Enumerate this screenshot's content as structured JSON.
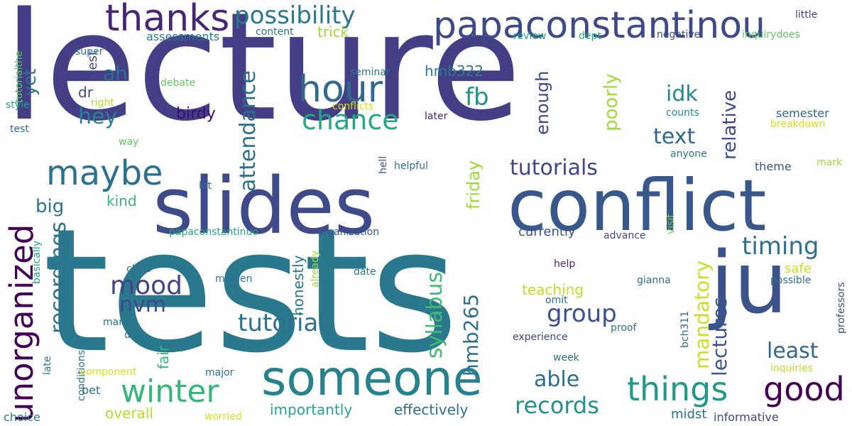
{
  "words": [
    {
      "text": "lecture",
      "color": "#433e85"
    },
    {
      "text": "tests",
      "color": "#2a788e"
    },
    {
      "text": "slides",
      "color": "#3e4a89"
    },
    {
      "text": "conflict",
      "color": "#38588c"
    },
    {
      "text": "someone",
      "color": "#26828e"
    },
    {
      "text": "ju",
      "color": "#3b528b"
    },
    {
      "text": "papaconstantinou",
      "color": "#3e4989"
    },
    {
      "text": "thanks",
      "color": "#482677"
    },
    {
      "text": "possibility",
      "color": "#2a788e"
    },
    {
      "text": "hour",
      "color": "#31688e"
    },
    {
      "text": "unorganized",
      "color": "#440154"
    },
    {
      "text": "maybe",
      "color": "#2c728e"
    },
    {
      "text": "winter",
      "color": "#35b779"
    },
    {
      "text": "things",
      "color": "#1f9a8a"
    },
    {
      "text": "good",
      "color": "#440154"
    },
    {
      "text": "chance",
      "color": "#22a884"
    },
    {
      "text": "attendance",
      "color": "#2d708e"
    },
    {
      "text": "tutorials",
      "color": "#3f4788"
    },
    {
      "text": "tutorial",
      "color": "#2c728e"
    },
    {
      "text": "group",
      "color": "#3b528b"
    },
    {
      "text": "timing",
      "color": "#2d708e"
    },
    {
      "text": "records",
      "color": "#21918c"
    },
    {
      "text": "mood",
      "color": "#414487"
    },
    {
      "text": "nvm",
      "color": "#3e4989"
    },
    {
      "text": "yet",
      "color": "#2c728e"
    },
    {
      "text": "hey",
      "color": "#26828e"
    },
    {
      "text": "ah",
      "color": "#2c728e"
    },
    {
      "text": "fb",
      "color": "#21918c"
    },
    {
      "text": "idk",
      "color": "#23888e"
    },
    {
      "text": "text",
      "color": "#31688e"
    },
    {
      "text": "enough",
      "color": "#3f4788"
    },
    {
      "text": "poorly",
      "color": "#a0da39"
    },
    {
      "text": "relative",
      "color": "#3e4a89"
    },
    {
      "text": "friday",
      "color": "#a0da39"
    },
    {
      "text": "mandatory",
      "color": "#c8e020"
    },
    {
      "text": "lectures",
      "color": "#3a548c"
    },
    {
      "text": "least",
      "color": "#31688e"
    },
    {
      "text": "able",
      "color": "#2d708e"
    },
    {
      "text": "syllabus",
      "color": "#3fbc73"
    },
    {
      "text": "hmb265",
      "color": "#2c728e"
    },
    {
      "text": "recordings",
      "color": "#2c728e"
    },
    {
      "text": "big",
      "color": "#2c728e"
    },
    {
      "text": "birdy",
      "color": "#3b0f70"
    },
    {
      "text": "dr",
      "color": "#3e4a89"
    },
    {
      "text": "best",
      "color": "#3e4989"
    },
    {
      "text": "hmb322",
      "color": "#2a788e"
    },
    {
      "text": "trick",
      "color": "#a0da39"
    },
    {
      "text": "assessments",
      "color": "#2a788e"
    },
    {
      "text": "content",
      "color": "#2c728e"
    },
    {
      "text": "review",
      "color": "#20a386"
    },
    {
      "text": "dept",
      "color": "#29af7f"
    },
    {
      "text": "negative",
      "color": "#3e4989"
    },
    {
      "text": "inquirydoes",
      "color": "#5ec962"
    },
    {
      "text": "little",
      "color": "#3e4989"
    },
    {
      "text": "super",
      "color": "#2c728e"
    },
    {
      "text": "seminar",
      "color": "#2a788e"
    },
    {
      "text": "right",
      "color": "#b5de2b"
    },
    {
      "text": "debate",
      "color": "#5ec962"
    },
    {
      "text": "conflicts",
      "color": "#d8e219"
    },
    {
      "text": "later",
      "color": "#482677"
    },
    {
      "text": "counts",
      "color": "#21918c"
    },
    {
      "text": "semester",
      "color": "#31688e"
    },
    {
      "text": "breakdown",
      "color": "#d8e219"
    },
    {
      "text": "anyone",
      "color": "#2a788e"
    },
    {
      "text": "way",
      "color": "#5ec962"
    },
    {
      "text": "helpful",
      "color": "#2c728e"
    },
    {
      "text": "hell",
      "color": "#3b528b"
    },
    {
      "text": "kind",
      "color": "#35b779"
    },
    {
      "text": "lot",
      "color": "#2c728e"
    },
    {
      "text": "theme",
      "color": "#3b528b"
    },
    {
      "text": "mark",
      "color": "#a0da39"
    },
    {
      "text": "currently",
      "color": "#3b528b"
    },
    {
      "text": "organization",
      "color": "#3b528b"
    },
    {
      "text": "papaconstantinuo",
      "color": "#22a884"
    },
    {
      "text": "advance",
      "color": "#3e4989"
    },
    {
      "text": "visit",
      "color": "#7ad151"
    },
    {
      "text": "professors",
      "color": "#3e4989"
    },
    {
      "text": "basically",
      "color": "#20a386"
    },
    {
      "text": "class",
      "color": "#2c728e"
    },
    {
      "text": "molgen",
      "color": "#2c728e"
    },
    {
      "text": "date",
      "color": "#2a788e"
    },
    {
      "text": "help",
      "color": "#482677"
    },
    {
      "text": "gianna",
      "color": "#2c728e"
    },
    {
      "text": "possible",
      "color": "#2c728e"
    },
    {
      "text": "already",
      "color": "#a0da39"
    },
    {
      "text": "honestly",
      "color": "#2a788e"
    },
    {
      "text": "safe",
      "color": "#c8e020"
    },
    {
      "text": "teaching",
      "color": "#bddf26"
    },
    {
      "text": "omit",
      "color": "#2c728e"
    },
    {
      "text": "proof",
      "color": "#2c728e"
    },
    {
      "text": "experience",
      "color": "#3e4989"
    },
    {
      "text": "bch311",
      "color": "#31688e"
    },
    {
      "text": "marks",
      "color": "#2c728e"
    },
    {
      "text": "due",
      "color": "#2c728e"
    },
    {
      "text": "fair",
      "color": "#35b779"
    },
    {
      "text": "late",
      "color": "#2c728e"
    },
    {
      "text": "conditions",
      "color": "#2a788e"
    },
    {
      "text": "component",
      "color": "#d8e219"
    },
    {
      "text": "major",
      "color": "#2c728e"
    },
    {
      "text": "week",
      "color": "#2c728e"
    },
    {
      "text": "inquiries",
      "color": "#bddf26"
    },
    {
      "text": "bet",
      "color": "#2c728e"
    },
    {
      "text": "overall",
      "color": "#b5de2b"
    },
    {
      "text": "importantly",
      "color": "#22a884"
    },
    {
      "text": "effectively",
      "color": "#2c728e"
    },
    {
      "text": "midst",
      "color": "#2c728e"
    },
    {
      "text": "informative",
      "color": "#3e4989"
    },
    {
      "text": "worried",
      "color": "#d8e219"
    },
    {
      "text": "choice",
      "color": "#2a788e"
    },
    {
      "text": "test",
      "color": "#2c728e"
    },
    {
      "text": "style",
      "color": "#20a386"
    },
    {
      "text": "tutorialthe",
      "color": "#5ec962"
    }
  ]
}
